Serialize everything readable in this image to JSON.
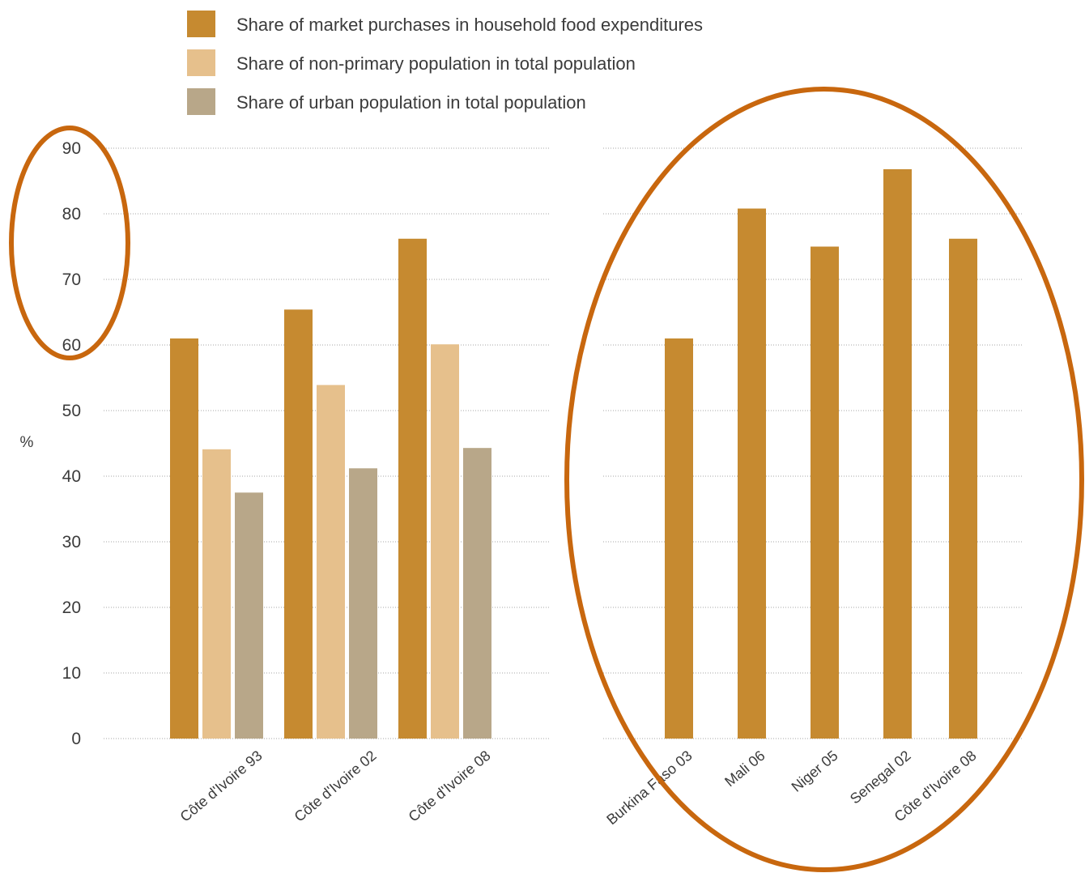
{
  "chart_data": [
    {
      "type": "bar",
      "ylabel": "%",
      "ylim": [
        0,
        90
      ],
      "yticks": [
        "0",
        "10",
        "20",
        "30",
        "40",
        "50",
        "60",
        "70",
        "80",
        "90"
      ],
      "grid": true,
      "categories": [
        "Côte d'Ivoire 93",
        "Côte d'Ivoire 02",
        "Côte d'Ivoire 08"
      ],
      "series": [
        {
          "name": "Share of market purchases in household food expenditures",
          "color": "#c68a30",
          "values": [
            61,
            65.4,
            76.2
          ]
        },
        {
          "name": "Share of non-primary population in total population",
          "color": "#e6c08c",
          "values": [
            44.1,
            53.9,
            60.1
          ]
        },
        {
          "name": "Share of urban population in total population",
          "color": "#b8a789",
          "values": [
            37.5,
            41.2,
            44.3
          ]
        }
      ]
    },
    {
      "type": "bar",
      "ylim": [
        0,
        90
      ],
      "grid": true,
      "categories": [
        "Burkina Faso 03",
        "Mali 06",
        "Niger 05",
        "Senegal 02",
        "Côte d'Ivoire 08"
      ],
      "series": [
        {
          "name": "Share of market purchases in household food expenditures",
          "color": "#c68a30",
          "values": [
            61,
            80.8,
            75,
            86.8,
            76.2
          ]
        }
      ]
    }
  ],
  "legend": {
    "items": [
      {
        "label": "Share of market purchases in household food expenditures",
        "color": "#c68a30"
      },
      {
        "label": "Share of non-primary population in total population",
        "color": "#e6c08c"
      },
      {
        "label": "Share of urban population in total population",
        "color": "#b8a789"
      }
    ]
  },
  "annotations": {
    "color": "#c8670e",
    "shape": "ellipse",
    "count": 2
  }
}
